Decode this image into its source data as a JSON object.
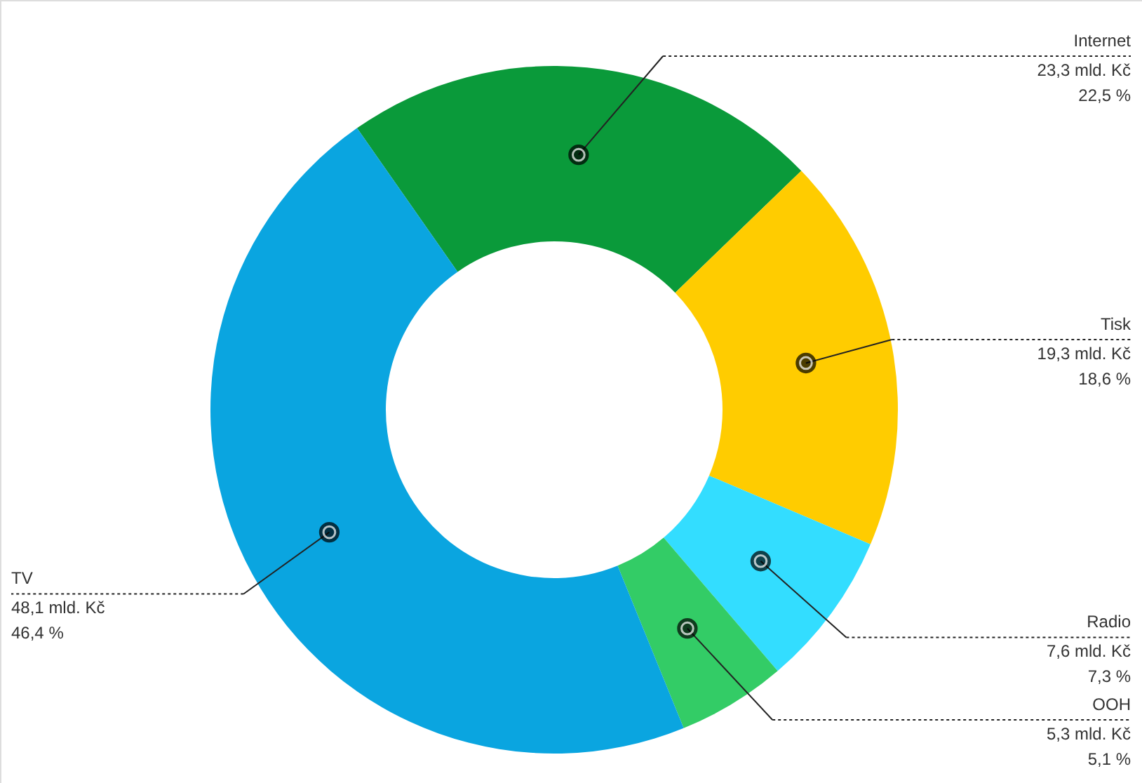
{
  "chart_data": {
    "type": "donut",
    "categories": [
      "Internet",
      "Tisk",
      "Radio",
      "OOH",
      "TV"
    ],
    "values": [
      23.3,
      19.3,
      7.6,
      5.3,
      48.1
    ],
    "value_labels": [
      "23,3 mld. Kč\n22,5 %",
      "19,3 mld. Kč\n18,6 %",
      "7,6 mld. Kč\n7,3 %",
      "5,3 mld. Kč\n5,1 %",
      "48,1 mld. Kč\n46,4 %"
    ],
    "colors": [
      "#0a9a3a",
      "#ffcc00",
      "#33ddff",
      "#33cc66",
      "#0aa5e0"
    ]
  }
}
